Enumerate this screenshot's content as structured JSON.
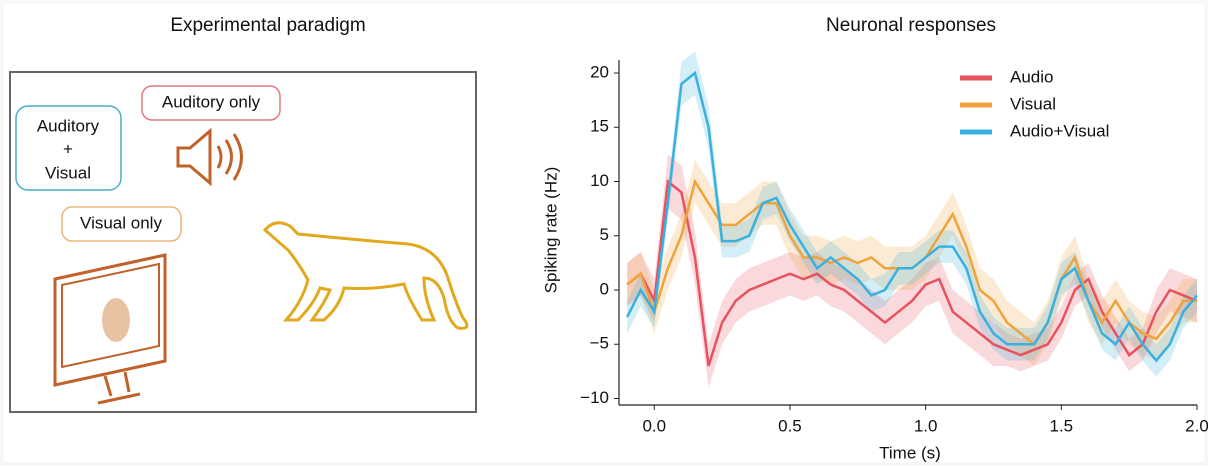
{
  "diagram": {
    "title": "Experimental paradigm",
    "auditory_only": "Auditory only",
    "audio_visual": [
      "Auditory",
      "+",
      "Visual"
    ],
    "visual_only": "Visual only"
  },
  "chart_data": {
    "type": "line",
    "title": "Neuronal responses",
    "x_label": "Time (s)",
    "y_label": "Spiking rate (Hz)",
    "x": [
      -0.1,
      -0.05,
      0,
      0.05,
      0.1,
      0.15,
      0.2,
      0.25,
      0.3,
      0.35,
      0.4,
      0.45,
      0.5,
      0.55,
      0.6,
      0.65,
      0.7,
      0.75,
      0.8,
      0.85,
      0.9,
      0.95,
      1.0,
      1.05,
      1.1,
      1.15,
      1.2,
      1.25,
      1.3,
      1.35,
      1.4,
      1.45,
      1.5,
      1.55,
      1.6,
      1.65,
      1.7,
      1.75,
      1.8,
      1.85,
      1.9,
      1.95,
      2.0
    ],
    "series": [
      {
        "name": "Audio",
        "color": "#e8525f",
        "values": [
          0.5,
          1.5,
          -1,
          10,
          9,
          3,
          -7,
          -3,
          -1,
          0,
          0.5,
          1,
          1.5,
          1,
          1.5,
          0.5,
          0,
          -1,
          -2,
          -3,
          -2,
          -1,
          0.5,
          1,
          -2,
          -3,
          -4,
          -5,
          -5.5,
          -6,
          -5.5,
          -5,
          -3,
          0,
          1,
          -2,
          -4,
          -6,
          -5,
          -2,
          0,
          -0.5,
          -1
        ],
        "errors": [
          2,
          2,
          2,
          2.5,
          2.5,
          2.5,
          2,
          2,
          2,
          2,
          2,
          2,
          2,
          2,
          2,
          2,
          2,
          2,
          2,
          2,
          2,
          2,
          2,
          2,
          2,
          2,
          2,
          2,
          1.5,
          1.5,
          1.5,
          1.5,
          1.5,
          1.5,
          1.5,
          1.5,
          1.5,
          1.5,
          1.5,
          2,
          2,
          2,
          2
        ]
      },
      {
        "name": "Visual",
        "color": "#f0a23c",
        "values": [
          0.5,
          1.5,
          -2,
          2,
          5,
          10,
          8,
          6,
          6,
          7,
          8,
          8,
          5,
          3,
          3,
          2.5,
          3,
          2.5,
          3,
          2,
          2,
          2,
          3,
          5,
          7,
          4,
          0,
          -1,
          -3,
          -4,
          -5,
          -3,
          1,
          3,
          -1,
          -3,
          -1,
          -3,
          -4,
          -4.5,
          -3,
          -1,
          -1
        ],
        "errors": [
          2,
          2,
          2,
          2,
          2,
          2,
          2,
          2,
          2,
          2,
          2,
          2,
          2,
          2,
          2,
          2,
          2,
          2,
          2,
          2,
          2,
          2,
          2,
          2,
          2,
          2,
          2,
          2,
          2,
          2,
          2,
          2,
          2,
          2,
          2,
          2,
          2,
          2,
          2,
          2,
          2,
          2,
          2
        ]
      },
      {
        "name": "Audio+Visual",
        "color": "#3ab0de",
        "values": [
          -2.5,
          0,
          -2,
          8,
          19,
          20,
          15,
          4.5,
          4.5,
          5,
          8,
          8.5,
          6,
          4,
          2,
          3,
          2,
          1,
          -0.5,
          0,
          2,
          2,
          3,
          4,
          4,
          2,
          -2,
          -4,
          -5,
          -5,
          -5,
          -3,
          1,
          2,
          -1,
          -4,
          -5,
          -3,
          -5,
          -6.5,
          -5,
          -2,
          -0.5
        ],
        "errors": [
          1.5,
          1.5,
          1.5,
          1.5,
          2,
          2,
          2,
          1.5,
          1.5,
          1.5,
          1.5,
          1.5,
          1.5,
          1.5,
          1.5,
          1.5,
          1.5,
          1.5,
          1.5,
          1.5,
          1.5,
          1.5,
          1.5,
          1.5,
          1.5,
          1.5,
          1.5,
          1.5,
          1.5,
          1.5,
          1.5,
          1.5,
          1.5,
          1.5,
          1.5,
          1.5,
          1.5,
          1.5,
          1.5,
          1.5,
          1.5,
          1.5,
          1.5
        ]
      }
    ],
    "xlim": [
      -0.13,
      2.0
    ],
    "ylim": [
      -10.6,
      21.2
    ],
    "xticks": [
      {
        "value": 0,
        "label": "0.0"
      },
      0.5,
      {
        "value": 1,
        "label": "1.0"
      },
      1.5,
      {
        "value": 2,
        "label": "2.0"
      }
    ],
    "yticks": [
      {
        "value": -10,
        "label": "−10"
      },
      {
        "value": -5,
        "label": "−5"
      },
      0,
      5,
      10,
      15,
      20
    ],
    "legend": "upper-right"
  }
}
